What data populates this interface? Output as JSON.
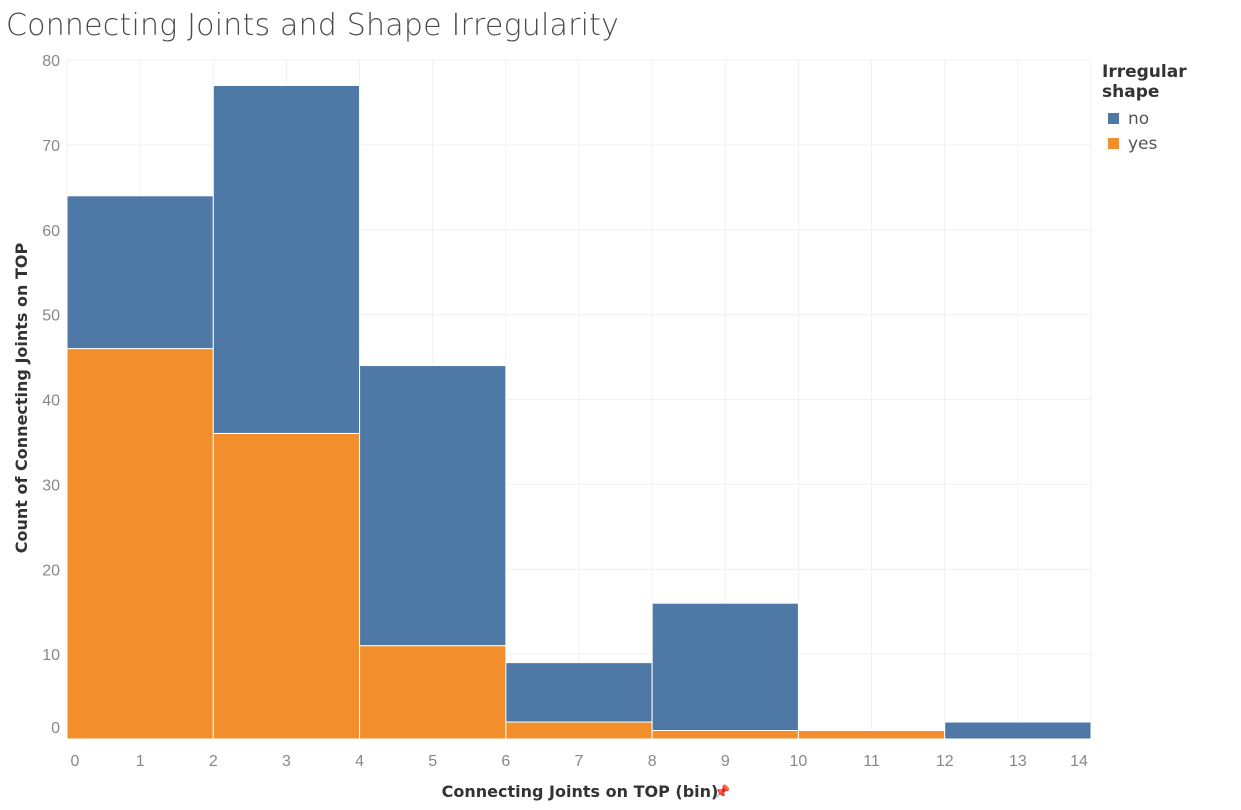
{
  "title": "Connecting Joints and Shape Irregularity",
  "legend": {
    "title": "Irregular shape",
    "items": [
      {
        "label": "no",
        "color": "#4e79a7"
      },
      {
        "label": "yes",
        "color": "#f28e2b"
      }
    ]
  },
  "chart_data": {
    "type": "bar",
    "stacked": true,
    "title": "Connecting Joints and Shape Irregularity",
    "xlabel": "Connecting Joints on TOP (bin)",
    "ylabel": "Count of Connecting Joints on TOP",
    "x_ticks": [
      0,
      1,
      2,
      3,
      4,
      5,
      6,
      7,
      8,
      9,
      10,
      11,
      12,
      13,
      14
    ],
    "y_ticks": [
      0,
      10,
      20,
      30,
      40,
      50,
      60,
      70,
      80
    ],
    "xlim": [
      0,
      14
    ],
    "ylim": [
      0,
      80
    ],
    "bins": [
      {
        "start": 0,
        "end": 2,
        "yes": 46,
        "no": 18
      },
      {
        "start": 2,
        "end": 4,
        "yes": 36,
        "no": 41
      },
      {
        "start": 4,
        "end": 6,
        "yes": 11,
        "no": 33
      },
      {
        "start": 6,
        "end": 8,
        "yes": 2,
        "no": 7
      },
      {
        "start": 8,
        "end": 10,
        "yes": 1,
        "no": 15
      },
      {
        "start": 10,
        "end": 12,
        "yes": 1,
        "no": 0
      },
      {
        "start": 12,
        "end": 14,
        "yes": 0,
        "no": 2
      }
    ],
    "series": [
      {
        "name": "no",
        "color": "#4e79a7"
      },
      {
        "name": "yes",
        "color": "#f28e2b"
      }
    ],
    "grid": true,
    "legend_position": "top-right"
  }
}
